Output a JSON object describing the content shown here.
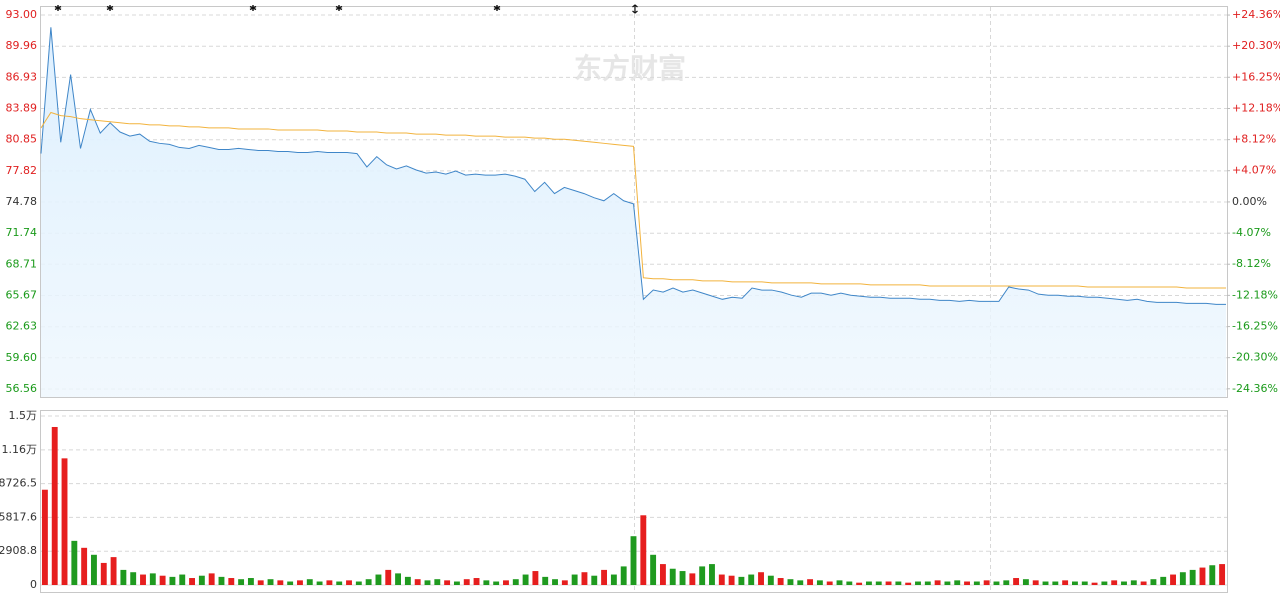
{
  "watermark": "东方财富",
  "chart_data": [
    {
      "type": "line",
      "ylim": [
        55.78,
        93.88
      ],
      "yticks": [
        {
          "value": 93,
          "label": "93.00"
        },
        89.96,
        86.93,
        83.89,
        80.85,
        77.82,
        74.78,
        71.74,
        68.71,
        65.67,
        62.63,
        {
          "value": 59.6,
          "label": "59.60"
        },
        56.56
      ],
      "ytick_colors": [
        "#e02020",
        "#e02020",
        "#e02020",
        "#e02020",
        "#e02020",
        "#e02020",
        "#333333",
        "#1a9a1a",
        "#1a9a1a",
        "#1a9a1a",
        "#1a9a1a",
        "#1a9a1a",
        "#1a9a1a"
      ],
      "y2lim": [
        -25.43,
        25.54
      ],
      "y2ticks": [
        {
          "value": 24.36,
          "label": "+24.36%"
        },
        {
          "value": 20.3,
          "label": "+20.30%"
        },
        {
          "value": 16.25,
          "label": "+16.25%"
        },
        {
          "value": 12.18,
          "label": "+12.18%"
        },
        {
          "value": 8.12,
          "label": "+8.12%"
        },
        {
          "value": 4.07,
          "label": "+4.07%"
        },
        {
          "value": 0,
          "label": "0.00%"
        },
        {
          "value": -4.07,
          "label": "-4.07%"
        },
        {
          "value": -8.12,
          "label": "-8.12%"
        },
        {
          "value": -12.18,
          "label": "-12.18%"
        },
        {
          "value": -16.25,
          "label": "-16.25%"
        },
        {
          "value": -20.3,
          "label": "-20.30%"
        },
        {
          "value": -24.36,
          "label": "-24.36%"
        }
      ],
      "y2tick_colors": [
        "#e02020",
        "#e02020",
        "#e02020",
        "#e02020",
        "#e02020",
        "#e02020",
        "#333333",
        "#1a9a1a",
        "#1a9a1a",
        "#1a9a1a",
        "#1a9a1a",
        "#1a9a1a",
        "#1a9a1a"
      ],
      "grid": true,
      "series": [
        {
          "color": "#3f86c8",
          "fill": true,
          "values": [
            79.5,
            91.8,
            80.6,
            87.2,
            80.0,
            83.8,
            81.5,
            82.5,
            81.6,
            81.2,
            81.4,
            80.7,
            80.5,
            80.4,
            80.1,
            80.0,
            80.3,
            80.1,
            79.9,
            79.9,
            80.0,
            79.9,
            79.8,
            79.8,
            79.7,
            79.7,
            79.6,
            79.6,
            79.7,
            79.6,
            79.6,
            79.6,
            79.5,
            78.2,
            79.2,
            78.4,
            78.0,
            78.3,
            77.9,
            77.6,
            77.7,
            77.5,
            77.8,
            77.4,
            77.5,
            77.4,
            77.4,
            77.5,
            77.3,
            77.0,
            75.8,
            76.7,
            75.6,
            76.2,
            75.9,
            75.6,
            75.2,
            74.9,
            75.6,
            74.9,
            74.6,
            65.3,
            66.2,
            66.0,
            66.4,
            66.0,
            66.2,
            65.9,
            65.6,
            65.3,
            65.5,
            65.4,
            66.4,
            66.2,
            66.2,
            66.0,
            65.7,
            65.5,
            65.9,
            65.9,
            65.7,
            65.9,
            65.7,
            65.6,
            65.5,
            65.5,
            65.4,
            65.4,
            65.4,
            65.3,
            65.3,
            65.2,
            65.2,
            65.1,
            65.2,
            65.1,
            65.1,
            65.1,
            66.5,
            66.3,
            66.2,
            65.8,
            65.7,
            65.7,
            65.6,
            65.6,
            65.5,
            65.5,
            65.4,
            65.3,
            65.2,
            65.3,
            65.1,
            65.0,
            65.0,
            65.0,
            64.9,
            64.9,
            64.9,
            64.8,
            64.8
          ]
        },
        {
          "color": "#f2b33d",
          "fill": false,
          "values": [
            82.0,
            83.5,
            83.2,
            83.1,
            82.9,
            82.8,
            82.7,
            82.6,
            82.5,
            82.4,
            82.4,
            82.3,
            82.3,
            82.2,
            82.2,
            82.1,
            82.1,
            82.0,
            82.0,
            82.0,
            81.9,
            81.9,
            81.9,
            81.9,
            81.8,
            81.8,
            81.8,
            81.8,
            81.8,
            81.7,
            81.7,
            81.7,
            81.6,
            81.6,
            81.6,
            81.5,
            81.5,
            81.5,
            81.4,
            81.4,
            81.4,
            81.3,
            81.3,
            81.3,
            81.2,
            81.2,
            81.2,
            81.1,
            81.1,
            81.1,
            81.0,
            81.0,
            80.9,
            80.9,
            80.8,
            80.7,
            80.6,
            80.5,
            80.4,
            80.3,
            80.2,
            67.4,
            67.3,
            67.3,
            67.2,
            67.2,
            67.2,
            67.1,
            67.1,
            67.1,
            67.0,
            67.0,
            67.0,
            67.0,
            66.9,
            66.9,
            66.9,
            66.9,
            66.9,
            66.8,
            66.8,
            66.8,
            66.8,
            66.8,
            66.7,
            66.7,
            66.7,
            66.7,
            66.7,
            66.7,
            66.6,
            66.6,
            66.6,
            66.6,
            66.6,
            66.6,
            66.6,
            66.6,
            66.6,
            66.6,
            66.6,
            66.6,
            66.6,
            66.6,
            66.6,
            66.6,
            66.5,
            66.5,
            66.5,
            66.5,
            66.5,
            66.5,
            66.5,
            66.5,
            66.5,
            66.5,
            66.4,
            66.4,
            66.4,
            66.4,
            66.4
          ]
        }
      ]
    },
    {
      "type": "bar",
      "ylim": [
        0,
        15062
      ],
      "yticks": [
        {
          "value": 14544.1,
          "label": "1.5万"
        },
        {
          "value": 11635.3,
          "label": "1.16万"
        },
        8726.5,
        5817.6,
        2908.8,
        0
      ],
      "grid": true,
      "values": [
        8200,
        13600,
        10900,
        3800,
        3200,
        2600,
        1900,
        2400,
        1300,
        1100,
        900,
        1000,
        800,
        700,
        900,
        600,
        800,
        1000,
        700,
        600,
        500,
        600,
        400,
        500,
        400,
        300,
        400,
        500,
        300,
        400,
        300,
        400,
        300,
        500,
        900,
        1300,
        1000,
        700,
        500,
        400,
        500,
        400,
        300,
        500,
        600,
        400,
        300,
        400,
        500,
        900,
        1200,
        700,
        500,
        400,
        900,
        1100,
        800,
        1300,
        900,
        1600,
        4200,
        6000,
        2600,
        1800,
        1400,
        1200,
        1000,
        1600,
        1800,
        900,
        800,
        700,
        900,
        1100,
        800,
        600,
        500,
        400,
        500,
        400,
        300,
        400,
        300,
        200,
        300,
        300,
        300,
        300,
        200,
        300,
        300,
        400,
        300,
        400,
        300,
        300,
        400,
        300,
        400,
        600,
        500,
        400,
        300,
        300,
        400,
        300,
        300,
        200,
        300,
        400,
        300,
        400,
        300,
        500,
        700,
        900,
        1100,
        1300,
        1500,
        1700,
        1800
      ],
      "colors": [
        "#e61e1e",
        "#e61e1e",
        "#e61e1e",
        "#1f9a1f",
        "#e61e1e",
        "#1f9a1f",
        "#e61e1e",
        "#e61e1e",
        "#1f9a1f",
        "#1f9a1f",
        "#e61e1e",
        "#1f9a1f",
        "#e61e1e",
        "#1f9a1f",
        "#1f9a1f",
        "#e61e1e",
        "#1f9a1f",
        "#e61e1e",
        "#1f9a1f",
        "#e61e1e",
        "#1f9a1f",
        "#1f9a1f",
        "#e61e1e",
        "#1f9a1f",
        "#e61e1e",
        "#1f9a1f",
        "#e61e1e",
        "#1f9a1f",
        "#1f9a1f",
        "#e61e1e",
        "#1f9a1f",
        "#e61e1e",
        "#1f9a1f",
        "#1f9a1f",
        "#1f9a1f",
        "#e61e1e",
        "#1f9a1f",
        "#1f9a1f",
        "#e61e1e",
        "#1f9a1f",
        "#1f9a1f",
        "#e61e1e",
        "#1f9a1f",
        "#e61e1e",
        "#e61e1e",
        "#1f9a1f",
        "#1f9a1f",
        "#e61e1e",
        "#1f9a1f",
        "#1f9a1f",
        "#e61e1e",
        "#1f9a1f",
        "#1f9a1f",
        "#e61e1e",
        "#1f9a1f",
        "#e61e1e",
        "#1f9a1f",
        "#e61e1e",
        "#1f9a1f",
        "#1f9a1f",
        "#1f9a1f",
        "#e61e1e",
        "#1f9a1f",
        "#e61e1e",
        "#1f9a1f",
        "#1f9a1f",
        "#e61e1e",
        "#1f9a1f",
        "#1f9a1f",
        "#e61e1e",
        "#e61e1e",
        "#1f9a1f",
        "#1f9a1f",
        "#e61e1e",
        "#1f9a1f",
        "#e61e1e",
        "#1f9a1f",
        "#1f9a1f",
        "#e61e1e",
        "#1f9a1f",
        "#e61e1e",
        "#1f9a1f",
        "#1f9a1f",
        "#e61e1e",
        "#1f9a1f",
        "#1f9a1f",
        "#e61e1e",
        "#1f9a1f",
        "#e61e1e",
        "#1f9a1f",
        "#1f9a1f",
        "#e61e1e",
        "#1f9a1f",
        "#1f9a1f",
        "#e61e1e",
        "#1f9a1f",
        "#e61e1e",
        "#1f9a1f",
        "#1f9a1f",
        "#e61e1e",
        "#1f9a1f",
        "#e61e1e",
        "#1f9a1f",
        "#1f9a1f",
        "#e61e1e",
        "#1f9a1f",
        "#1f9a1f",
        "#e61e1e",
        "#1f9a1f",
        "#e61e1e",
        "#1f9a1f",
        "#1f9a1f",
        "#e61e1e",
        "#1f9a1f",
        "#1f9a1f",
        "#e61e1e",
        "#1f9a1f",
        "#1f9a1f",
        "#e61e1e",
        "#1f9a1f",
        "#e61e1e"
      ]
    }
  ]
}
